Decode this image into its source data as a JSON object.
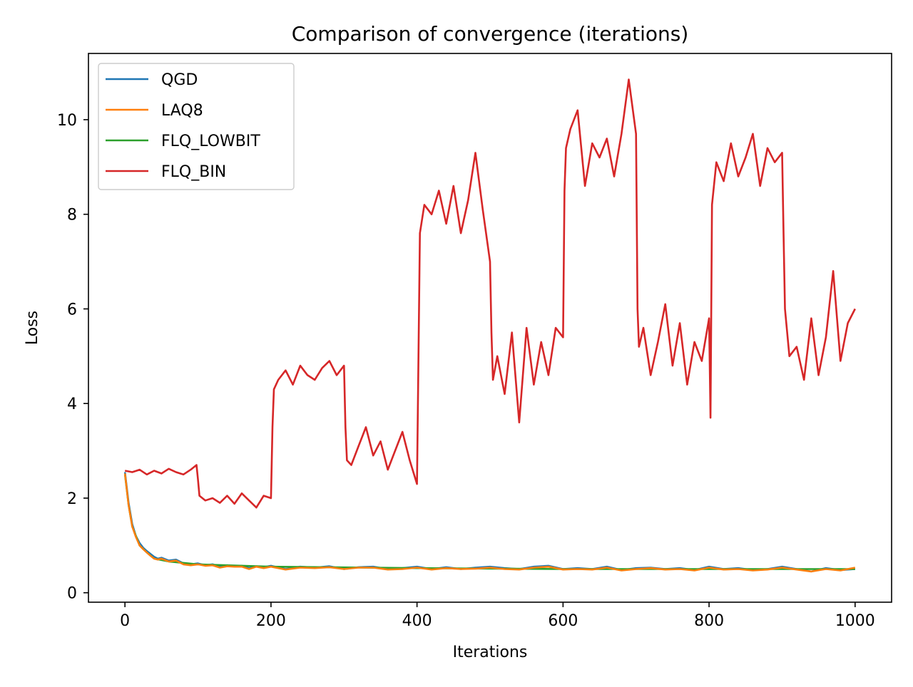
{
  "chart_data": {
    "type": "line",
    "title": "Comparison of convergence (iterations)",
    "xlabel": "Iterations",
    "ylabel": "Loss",
    "xlim": [
      -50,
      1050
    ],
    "ylim": [
      -0.2,
      11.4
    ],
    "xticks": [
      0,
      200,
      400,
      600,
      800,
      1000
    ],
    "yticks": [
      0,
      2,
      4,
      6,
      8,
      10
    ],
    "grid": false,
    "legend_position": "top-left",
    "series": [
      {
        "name": "QGD",
        "color": "#1f77b4",
        "x": [
          0,
          5,
          10,
          15,
          20,
          25,
          30,
          35,
          40,
          45,
          50,
          60,
          70,
          80,
          90,
          100,
          110,
          120,
          130,
          140,
          150,
          160,
          170,
          180,
          190,
          200,
          220,
          240,
          260,
          280,
          300,
          320,
          340,
          360,
          380,
          400,
          420,
          440,
          460,
          480,
          500,
          520,
          540,
          560,
          580,
          600,
          620,
          640,
          660,
          680,
          700,
          720,
          740,
          760,
          780,
          800,
          820,
          840,
          860,
          880,
          900,
          920,
          940,
          960,
          980,
          1000
        ],
        "values": [
          2.55,
          1.9,
          1.45,
          1.2,
          1.05,
          0.95,
          0.88,
          0.82,
          0.76,
          0.72,
          0.74,
          0.68,
          0.7,
          0.62,
          0.6,
          0.62,
          0.58,
          0.6,
          0.55,
          0.58,
          0.56,
          0.57,
          0.52,
          0.56,
          0.54,
          0.57,
          0.5,
          0.55,
          0.53,
          0.56,
          0.5,
          0.54,
          0.55,
          0.5,
          0.52,
          0.55,
          0.5,
          0.54,
          0.5,
          0.53,
          0.55,
          0.52,
          0.5,
          0.55,
          0.57,
          0.5,
          0.52,
          0.5,
          0.55,
          0.48,
          0.52,
          0.53,
          0.5,
          0.52,
          0.48,
          0.55,
          0.5,
          0.52,
          0.48,
          0.5,
          0.55,
          0.5,
          0.45,
          0.52,
          0.48,
          0.5
        ]
      },
      {
        "name": "LAQ8",
        "color": "#ff7f0e",
        "x": [
          0,
          5,
          10,
          15,
          20,
          25,
          30,
          35,
          40,
          45,
          50,
          60,
          70,
          80,
          90,
          100,
          110,
          120,
          130,
          140,
          150,
          160,
          170,
          180,
          190,
          200,
          220,
          240,
          260,
          280,
          300,
          320,
          340,
          360,
          380,
          400,
          420,
          440,
          460,
          480,
          500,
          520,
          540,
          560,
          580,
          600,
          620,
          640,
          660,
          680,
          700,
          720,
          740,
          760,
          780,
          800,
          820,
          840,
          860,
          880,
          900,
          920,
          940,
          960,
          980,
          1000
        ],
        "values": [
          2.52,
          1.85,
          1.4,
          1.18,
          1.0,
          0.92,
          0.85,
          0.78,
          0.72,
          0.7,
          0.72,
          0.66,
          0.68,
          0.6,
          0.58,
          0.6,
          0.57,
          0.58,
          0.53,
          0.56,
          0.55,
          0.55,
          0.5,
          0.55,
          0.52,
          0.55,
          0.49,
          0.53,
          0.52,
          0.54,
          0.5,
          0.53,
          0.53,
          0.49,
          0.5,
          0.53,
          0.49,
          0.52,
          0.5,
          0.51,
          0.53,
          0.5,
          0.49,
          0.53,
          0.55,
          0.49,
          0.5,
          0.49,
          0.53,
          0.47,
          0.5,
          0.52,
          0.49,
          0.5,
          0.47,
          0.53,
          0.49,
          0.5,
          0.47,
          0.49,
          0.53,
          0.49,
          0.45,
          0.5,
          0.47,
          0.53
        ]
      },
      {
        "name": "FLQ_LOWBIT",
        "color": "#2ca02c",
        "x": [
          0,
          5,
          10,
          20,
          30,
          40,
          60,
          100,
          200,
          400,
          600,
          800,
          1000
        ],
        "values": [
          2.5,
          1.85,
          1.4,
          1.0,
          0.85,
          0.72,
          0.66,
          0.6,
          0.55,
          0.52,
          0.5,
          0.5,
          0.5
        ]
      },
      {
        "name": "FLQ_BIN",
        "color": "#d62728",
        "x": [
          0,
          10,
          20,
          30,
          40,
          50,
          60,
          70,
          80,
          90,
          98,
          100,
          102,
          110,
          120,
          130,
          140,
          150,
          160,
          170,
          180,
          190,
          200,
          202,
          204,
          210,
          220,
          230,
          240,
          250,
          260,
          270,
          280,
          290,
          300,
          302,
          304,
          310,
          320,
          330,
          340,
          350,
          360,
          370,
          380,
          390,
          400,
          402,
          404,
          410,
          420,
          430,
          440,
          450,
          460,
          470,
          480,
          490,
          500,
          502,
          504,
          510,
          520,
          530,
          540,
          550,
          560,
          570,
          580,
          590,
          600,
          602,
          604,
          610,
          620,
          630,
          640,
          650,
          660,
          670,
          680,
          690,
          700,
          702,
          704,
          710,
          720,
          730,
          740,
          750,
          760,
          770,
          780,
          790,
          800,
          802,
          804,
          810,
          820,
          830,
          840,
          850,
          860,
          870,
          880,
          890,
          900,
          902,
          904,
          910,
          920,
          930,
          940,
          950,
          960,
          970,
          980,
          990,
          1000
        ],
        "values": [
          2.58,
          2.55,
          2.6,
          2.5,
          2.58,
          2.52,
          2.62,
          2.55,
          2.5,
          2.6,
          2.7,
          2.4,
          2.05,
          1.95,
          2.0,
          1.9,
          2.05,
          1.88,
          2.1,
          1.95,
          1.8,
          2.05,
          2.0,
          3.5,
          4.3,
          4.5,
          4.7,
          4.4,
          4.8,
          4.6,
          4.5,
          4.75,
          4.9,
          4.6,
          4.8,
          3.5,
          2.8,
          2.7,
          3.1,
          3.5,
          2.9,
          3.2,
          2.6,
          3.0,
          3.4,
          2.8,
          2.3,
          5.0,
          7.6,
          8.2,
          8.0,
          8.5,
          7.8,
          8.6,
          7.6,
          8.3,
          9.3,
          8.1,
          7.0,
          5.5,
          4.5,
          5.0,
          4.2,
          5.5,
          3.6,
          5.6,
          4.4,
          5.3,
          4.6,
          5.6,
          5.4,
          8.5,
          9.4,
          9.8,
          10.2,
          8.6,
          9.5,
          9.2,
          9.6,
          8.8,
          9.7,
          10.85,
          9.7,
          6.0,
          5.2,
          5.6,
          4.6,
          5.3,
          6.1,
          4.8,
          5.7,
          4.4,
          5.3,
          4.9,
          5.8,
          3.7,
          8.2,
          9.1,
          8.7,
          9.5,
          8.8,
          9.2,
          9.7,
          8.6,
          9.4,
          9.1,
          9.3,
          7.6,
          6.0,
          5.0,
          5.2,
          4.5,
          5.8,
          4.6,
          5.4,
          6.8,
          4.9,
          5.7,
          6.0
        ]
      }
    ]
  }
}
